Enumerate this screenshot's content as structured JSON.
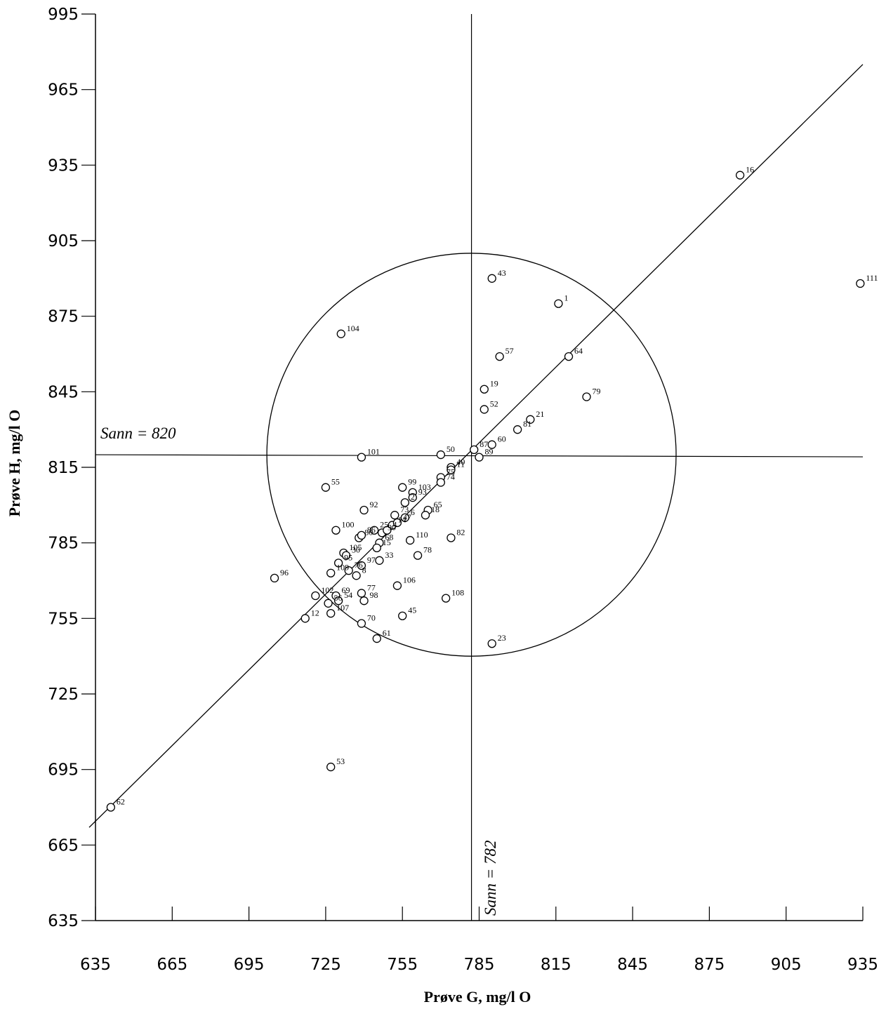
{
  "chart_data": {
    "type": "scatter",
    "xlabel": "Prøve G,  mg/l O",
    "ylabel": "Prøve H,  mg/l O",
    "xlim": [
      635,
      935
    ],
    "ylim": [
      635,
      995
    ],
    "xticks": [
      "635",
      "665",
      "695",
      "725",
      "755",
      "785",
      "815",
      "845",
      "875",
      "905",
      "935"
    ],
    "yticks": [
      "635",
      "665",
      "695",
      "725",
      "755",
      "785",
      "815",
      "845",
      "875",
      "905",
      "935",
      "965",
      "995"
    ],
    "true_x": 782,
    "true_y": 820,
    "true_x_label": "Sann = 782",
    "true_y_label": "Sann = 820",
    "circle_radius": 80,
    "diagonal_line": [
      [
        635,
        672
      ],
      [
        935,
        975
      ]
    ],
    "points": [
      {
        "label": "1",
        "x": 816,
        "y": 880
      },
      {
        "label": "16",
        "x": 887,
        "y": 931
      },
      {
        "label": "111",
        "x": 934,
        "y": 888
      },
      {
        "label": "43",
        "x": 790,
        "y": 890
      },
      {
        "label": "104",
        "x": 731,
        "y": 868
      },
      {
        "label": "57",
        "x": 793,
        "y": 859
      },
      {
        "label": "64",
        "x": 820,
        "y": 859
      },
      {
        "label": "79",
        "x": 827,
        "y": 843
      },
      {
        "label": "19",
        "x": 787,
        "y": 846
      },
      {
        "label": "52",
        "x": 787,
        "y": 838
      },
      {
        "label": "21",
        "x": 805,
        "y": 834
      },
      {
        "label": "81",
        "x": 800,
        "y": 830
      },
      {
        "label": "60",
        "x": 790,
        "y": 824
      },
      {
        "label": "87",
        "x": 783,
        "y": 822
      },
      {
        "label": "89",
        "x": 785,
        "y": 819
      },
      {
        "label": "50",
        "x": 770,
        "y": 820
      },
      {
        "label": "101",
        "x": 739,
        "y": 819
      },
      {
        "label": "40",
        "x": 774,
        "y": 815
      },
      {
        "label": "11",
        "x": 774,
        "y": 814
      },
      {
        "label": "75",
        "x": 770,
        "y": 811
      },
      {
        "label": "74",
        "x": 770,
        "y": 809
      },
      {
        "label": "55",
        "x": 725,
        "y": 807
      },
      {
        "label": "99",
        "x": 755,
        "y": 807
      },
      {
        "label": "103",
        "x": 759,
        "y": 805
      },
      {
        "label": "93",
        "x": 759,
        "y": 803
      },
      {
        "label": "2",
        "x": 756,
        "y": 801
      },
      {
        "label": "92",
        "x": 740,
        "y": 798
      },
      {
        "label": "73",
        "x": 752,
        "y": 796
      },
      {
        "label": "6",
        "x": 756,
        "y": 795
      },
      {
        "label": "65",
        "x": 765,
        "y": 798
      },
      {
        "label": "18",
        "x": 764,
        "y": 796
      },
      {
        "label": "100",
        "x": 729,
        "y": 790
      },
      {
        "label": "25",
        "x": 744,
        "y": 790
      },
      {
        "label": "14",
        "x": 751,
        "y": 792
      },
      {
        "label": "47",
        "x": 753,
        "y": 793
      },
      {
        "label": "80",
        "x": 738,
        "y": 787
      },
      {
        "label": "86",
        "x": 739,
        "y": 788
      },
      {
        "label": "90",
        "x": 747,
        "y": 789
      },
      {
        "label": "4",
        "x": 749,
        "y": 790
      },
      {
        "label": "82",
        "x": 774,
        "y": 787
      },
      {
        "label": "110",
        "x": 758,
        "y": 786
      },
      {
        "label": "68",
        "x": 746,
        "y": 785
      },
      {
        "label": "15",
        "x": 745,
        "y": 783
      },
      {
        "label": "105",
        "x": 732,
        "y": 781
      },
      {
        "label": "30",
        "x": 733,
        "y": 780
      },
      {
        "label": "78",
        "x": 761,
        "y": 780
      },
      {
        "label": "33",
        "x": 746,
        "y": 778
      },
      {
        "label": "95",
        "x": 730,
        "y": 777
      },
      {
        "label": "97",
        "x": 739,
        "y": 776
      },
      {
        "label": "109",
        "x": 727,
        "y": 773
      },
      {
        "label": "76",
        "x": 734,
        "y": 774
      },
      {
        "label": "8",
        "x": 737,
        "y": 772
      },
      {
        "label": "96",
        "x": 705,
        "y": 771
      },
      {
        "label": "106",
        "x": 753,
        "y": 768
      },
      {
        "label": "77",
        "x": 739,
        "y": 765
      },
      {
        "label": "108",
        "x": 772,
        "y": 763
      },
      {
        "label": "102",
        "x": 721,
        "y": 764
      },
      {
        "label": "69",
        "x": 729,
        "y": 764
      },
      {
        "label": "54",
        "x": 730,
        "y": 762
      },
      {
        "label": "56",
        "x": 726,
        "y": 761
      },
      {
        "label": "98",
        "x": 740,
        "y": 762
      },
      {
        "label": "107",
        "x": 727,
        "y": 757
      },
      {
        "label": "45",
        "x": 755,
        "y": 756
      },
      {
        "label": "12",
        "x": 717,
        "y": 755
      },
      {
        "label": "70",
        "x": 739,
        "y": 753
      },
      {
        "label": "61",
        "x": 745,
        "y": 747
      },
      {
        "label": "23",
        "x": 790,
        "y": 745
      },
      {
        "label": "53",
        "x": 727,
        "y": 696
      },
      {
        "label": "62",
        "x": 641,
        "y": 680
      }
    ]
  }
}
